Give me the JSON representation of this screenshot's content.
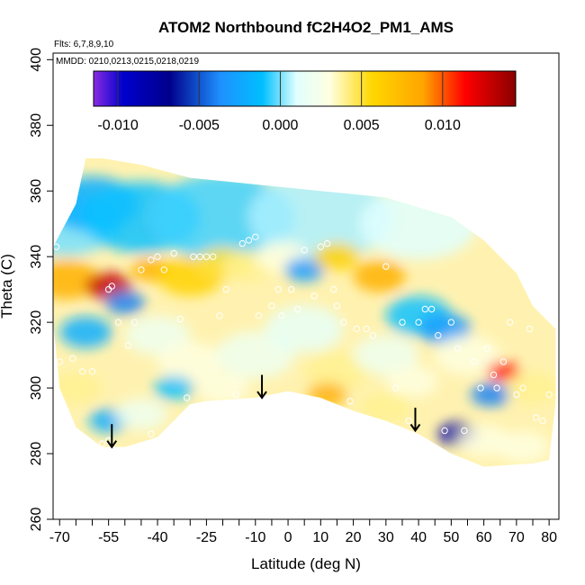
{
  "chart_data": {
    "type": "heatmap",
    "title": "ATOM2 Northbound fC2H4O2_PM1_AMS",
    "subtitle_flights": "Flts: 6,7,8,9,10",
    "subtitle_dates": "MMDD: 0210,0213,0215,0218,0219",
    "xlabel": "Latitude (deg N)",
    "ylabel": "Theta (C)",
    "xlim": [
      -72,
      83
    ],
    "ylim": [
      260,
      402
    ],
    "x_ticks": [
      -70,
      -55,
      -40,
      -25,
      -10,
      0,
      10,
      20,
      30,
      40,
      50,
      60,
      70,
      80
    ],
    "x_tick_labels": [
      "-70",
      "-55",
      "-40",
      "-25",
      "-10",
      "0",
      "10",
      "20",
      "30",
      "40",
      "50",
      "60",
      "70",
      "80"
    ],
    "x_minor_ticks": [
      -65,
      -60,
      -50,
      -45,
      -35,
      -30,
      -20,
      -15,
      -5,
      5,
      15,
      25,
      35,
      45,
      55,
      65,
      75
    ],
    "y_ticks": [
      260,
      280,
      300,
      320,
      340,
      360,
      380,
      400
    ],
    "y_tick_labels": [
      "260",
      "280",
      "300",
      "320",
      "340",
      "360",
      "380",
      "400"
    ],
    "colorbar": {
      "range": [
        -0.0115,
        0.0145
      ],
      "ticks": [
        -0.01,
        -0.005,
        0.0,
        0.005,
        0.01
      ],
      "tick_labels": [
        "-0.010",
        "-0.005",
        "0.000",
        "0.005",
        "0.010"
      ],
      "colors": [
        "#8a2be2",
        "#0000cd",
        "#00008b",
        "#1e90ff",
        "#00bfff",
        "#e0ffff",
        "#ffffe0",
        "#ffd700",
        "#ffa500",
        "#ff0000",
        "#8b0000"
      ]
    },
    "coverage_outline": [
      [
        -72,
        343
      ],
      [
        -65,
        356
      ],
      [
        -62,
        370
      ],
      [
        -57,
        370
      ],
      [
        -45,
        368
      ],
      [
        -30,
        364
      ],
      [
        -10,
        362
      ],
      [
        10,
        360
      ],
      [
        30,
        358
      ],
      [
        50,
        352
      ],
      [
        60,
        345
      ],
      [
        70,
        335
      ],
      [
        75,
        325
      ],
      [
        80,
        320
      ],
      [
        82,
        318
      ],
      [
        82,
        295
      ],
      [
        80,
        278
      ],
      [
        75,
        277
      ],
      [
        60,
        276
      ],
      [
        50,
        280
      ],
      [
        40,
        286
      ],
      [
        30,
        290
      ],
      [
        20,
        293
      ],
      [
        10,
        297
      ],
      [
        0,
        299
      ],
      [
        -10,
        297
      ],
      [
        -25,
        296
      ],
      [
        -30,
        295
      ],
      [
        -40,
        285
      ],
      [
        -50,
        282
      ],
      [
        -57,
        282
      ],
      [
        -65,
        288
      ],
      [
        -70,
        300
      ],
      [
        -72,
        320
      ]
    ],
    "field_patches": [
      {
        "lat": -68,
        "theta": 350,
        "value": 0.0,
        "r": 16
      },
      {
        "lat": -60,
        "theta": 356,
        "value": -0.002,
        "r": 14
      },
      {
        "lat": -45,
        "theta": 352,
        "value": -0.001,
        "r": 18
      },
      {
        "lat": -20,
        "theta": 352,
        "value": -0.0005,
        "r": 22
      },
      {
        "lat": 10,
        "theta": 352,
        "value": 0.0005,
        "r": 22
      },
      {
        "lat": 40,
        "theta": 350,
        "value": 0.001,
        "r": 18
      },
      {
        "lat": -68,
        "theta": 333,
        "value": 0.008,
        "r": 10
      },
      {
        "lat": -55,
        "theta": 331,
        "value": 0.013,
        "r": 7
      },
      {
        "lat": -50,
        "theta": 326,
        "value": -0.004,
        "r": 6
      },
      {
        "lat": -42,
        "theta": 336,
        "value": 0.008,
        "r": 6
      },
      {
        "lat": -30,
        "theta": 334,
        "value": 0.006,
        "r": 10
      },
      {
        "lat": -20,
        "theta": 338,
        "value": 0.005,
        "r": 8
      },
      {
        "lat": -12,
        "theta": 337,
        "value": 0.004,
        "r": 8
      },
      {
        "lat": -2,
        "theta": 340,
        "value": 0.003,
        "r": 8
      },
      {
        "lat": 5,
        "theta": 336,
        "value": -0.003,
        "r": 6
      },
      {
        "lat": 15,
        "theta": 340,
        "value": 0.006,
        "r": 7
      },
      {
        "lat": 28,
        "theta": 334,
        "value": 0.008,
        "r": 8
      },
      {
        "lat": 40,
        "theta": 322,
        "value": -0.001,
        "r": 10
      },
      {
        "lat": 48,
        "theta": 318,
        "value": -0.003,
        "r": 8
      },
      {
        "lat": -62,
        "theta": 317,
        "value": -0.002,
        "r": 8
      },
      {
        "lat": -40,
        "theta": 316,
        "value": 0.002,
        "r": 10
      },
      {
        "lat": -30,
        "theta": 308,
        "value": 0.003,
        "r": 10
      },
      {
        "lat": -10,
        "theta": 310,
        "value": 0.002,
        "r": 12
      },
      {
        "lat": 5,
        "theta": 318,
        "value": 0.0015,
        "r": 12
      },
      {
        "lat": 15,
        "theta": 305,
        "value": 0.004,
        "r": 10
      },
      {
        "lat": 30,
        "theta": 310,
        "value": 0.002,
        "r": 10
      },
      {
        "lat": 38,
        "theta": 302,
        "value": 0.003,
        "r": 8
      },
      {
        "lat": 55,
        "theta": 310,
        "value": 0.003,
        "r": 10
      },
      {
        "lat": 66,
        "theta": 305,
        "value": 0.011,
        "r": 5
      },
      {
        "lat": 62,
        "theta": 298,
        "value": -0.004,
        "r": 6
      },
      {
        "lat": 75,
        "theta": 300,
        "value": 0.004,
        "r": 8
      },
      {
        "lat": -65,
        "theta": 300,
        "value": 0.004,
        "r": 8
      },
      {
        "lat": -55,
        "theta": 290,
        "value": -0.002,
        "r": 6
      },
      {
        "lat": -45,
        "theta": 292,
        "value": 0.002,
        "r": 8
      },
      {
        "lat": -35,
        "theta": 300,
        "value": -0.001,
        "r": 6
      },
      {
        "lat": -20,
        "theta": 300,
        "value": 0.003,
        "r": 8
      },
      {
        "lat": 12,
        "theta": 298,
        "value": 0.008,
        "r": 6
      },
      {
        "lat": 30,
        "theta": 294,
        "value": 0.004,
        "r": 8
      },
      {
        "lat": 52,
        "theta": 286,
        "value": -0.008,
        "r": 6
      },
      {
        "lat": 60,
        "theta": 284,
        "value": 0.003,
        "r": 8
      },
      {
        "lat": 72,
        "theta": 282,
        "value": 0.003,
        "r": 8
      }
    ],
    "sample_points": [
      [
        -71,
        343
      ],
      [
        -70,
        308
      ],
      [
        -63,
        305
      ],
      [
        -57,
        283
      ],
      [
        -55,
        330
      ],
      [
        -54,
        331
      ],
      [
        -52,
        320
      ],
      [
        -49,
        313
      ],
      [
        -47,
        320
      ],
      [
        -45,
        336
      ],
      [
        -42,
        339
      ],
      [
        -40,
        340
      ],
      [
        -38,
        336
      ],
      [
        -35,
        341
      ],
      [
        -33,
        321
      ],
      [
        -31,
        297
      ],
      [
        -29,
        340
      ],
      [
        -27,
        340
      ],
      [
        -25,
        340
      ],
      [
        -23,
        340
      ],
      [
        -21,
        322
      ],
      [
        -19,
        330
      ],
      [
        -16,
        298
      ],
      [
        -14,
        344
      ],
      [
        -12,
        345
      ],
      [
        -10,
        346
      ],
      [
        -9,
        322
      ],
      [
        -5,
        325
      ],
      [
        -3,
        330
      ],
      [
        -2,
        322
      ],
      [
        1,
        330
      ],
      [
        3,
        324
      ],
      [
        5,
        342
      ],
      [
        8,
        328
      ],
      [
        10,
        343
      ],
      [
        12,
        344
      ],
      [
        14,
        330
      ],
      [
        15,
        325
      ],
      [
        17,
        320
      ],
      [
        19,
        296
      ],
      [
        21,
        318
      ],
      [
        24,
        318
      ],
      [
        26,
        316
      ],
      [
        30,
        337
      ],
      [
        33,
        300
      ],
      [
        35,
        320
      ],
      [
        37,
        290
      ],
      [
        40,
        320
      ],
      [
        42,
        324
      ],
      [
        44,
        324
      ],
      [
        46,
        316
      ],
      [
        48,
        287
      ],
      [
        50,
        320
      ],
      [
        52,
        312
      ],
      [
        54,
        287
      ],
      [
        57,
        308
      ],
      [
        59,
        300
      ],
      [
        61,
        312
      ],
      [
        63,
        304
      ],
      [
        64,
        300
      ],
      [
        66,
        308
      ],
      [
        68,
        320
      ],
      [
        70,
        298
      ],
      [
        72,
        300
      ],
      [
        74,
        318
      ],
      [
        76,
        291
      ],
      [
        78,
        290
      ],
      [
        80,
        298
      ],
      [
        -66,
        309
      ],
      [
        -60,
        305
      ],
      [
        -55,
        284
      ],
      [
        -42,
        286
      ]
    ],
    "annotations": [
      {
        "type": "arrow-down",
        "lat": -54,
        "theta_start": 289,
        "theta_end": 282
      },
      {
        "type": "arrow-down",
        "lat": -8,
        "theta_start": 304,
        "theta_end": 297
      },
      {
        "type": "arrow-down",
        "lat": 39,
        "theta_start": 294,
        "theta_end": 287
      }
    ]
  }
}
